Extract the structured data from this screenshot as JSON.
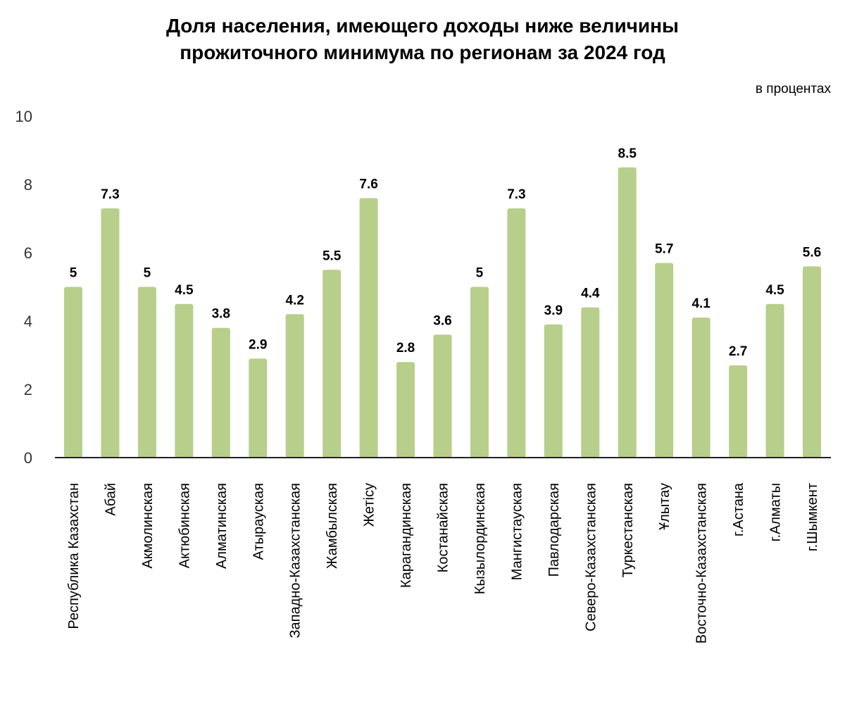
{
  "chart_data": {
    "type": "bar",
    "title_line1": "Доля населения, имеющего доходы ниже величины",
    "title_line2": "прожиточного минимума по регионам за 2024 год",
    "unit_label": "в процентах",
    "xlabel": "",
    "ylabel": "",
    "ylim": [
      0,
      10
    ],
    "yticks": [
      0,
      2,
      4,
      6,
      8,
      10
    ],
    "grid": false,
    "legend": "none",
    "bar_color": "#b7cf8b",
    "categories": [
      "Республика Казахстан",
      "Абай",
      "Акмолинская",
      "Актюбинская",
      "Алматинская",
      "Атырауская",
      "Западно-Казахстанская",
      "Жамбылская",
      "Жетісу",
      "Карагандинская",
      "Костанайская",
      "Кызылординская",
      "Мангистауская",
      "Павлодарская",
      "Северо-Казахстанская",
      "Туркестанская",
      "Ұлытау",
      "Восточно-Казахстанская",
      "г.Астана",
      "г.Алматы",
      "г.Шымкент"
    ],
    "values": [
      5,
      7.3,
      5,
      4.5,
      3.8,
      2.9,
      4.2,
      5.5,
      7.6,
      2.8,
      3.6,
      5,
      7.3,
      3.9,
      4.4,
      8.5,
      5.7,
      4.1,
      2.7,
      4.5,
      5.6
    ]
  }
}
